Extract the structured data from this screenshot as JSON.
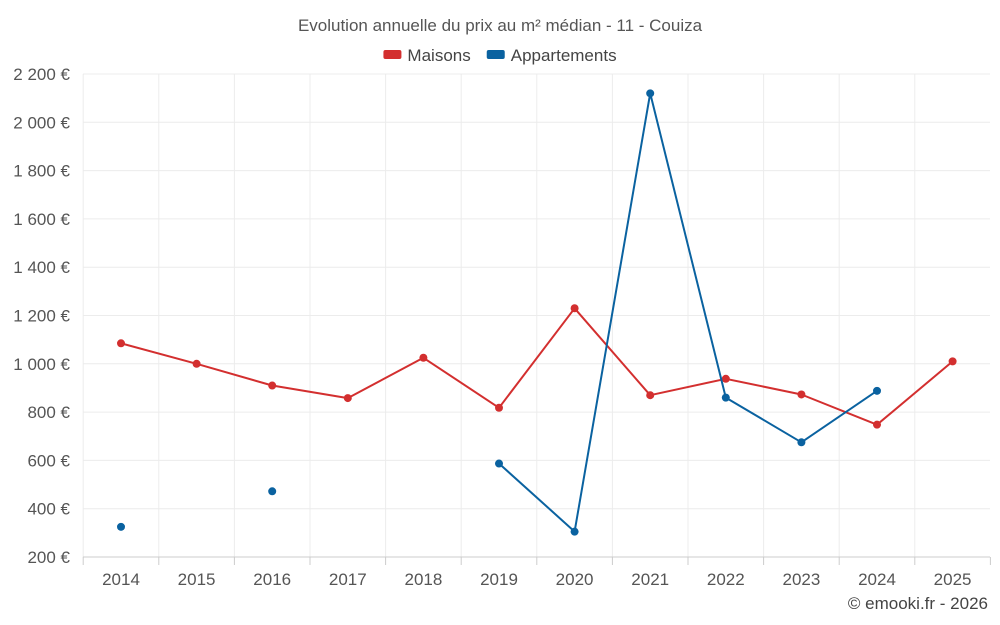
{
  "chart_data": {
    "type": "line",
    "title": "Evolution annuelle du prix au m² médian - 11 - Couiza",
    "categories": [
      "2014",
      "2015",
      "2016",
      "2017",
      "2018",
      "2019",
      "2020",
      "2021",
      "2022",
      "2023",
      "2024",
      "2025"
    ],
    "ylim": [
      200,
      2200
    ],
    "ytick_values": [
      200,
      400,
      600,
      800,
      1000,
      1200,
      1400,
      1600,
      1800,
      2000,
      2200
    ],
    "ytick_labels": [
      "200 €",
      "400 €",
      "600 €",
      "800 €",
      "1 000 €",
      "1 200 €",
      "1 400 €",
      "1 600 €",
      "1 800 €",
      "2 000 €",
      "2 200 €"
    ],
    "grid": true,
    "legend_position": "top-center",
    "series": [
      {
        "name": "Maisons",
        "color": "#d32f2f",
        "values": [
          1085,
          1000,
          910,
          858,
          1025,
          818,
          1230,
          870,
          938,
          873,
          748,
          1010
        ]
      },
      {
        "name": "Appartements",
        "color": "#0a62a0",
        "values": [
          325,
          null,
          472,
          null,
          null,
          587,
          305,
          2120,
          860,
          675,
          888,
          null
        ]
      }
    ]
  },
  "credit": "© emooki.fr - 2026"
}
